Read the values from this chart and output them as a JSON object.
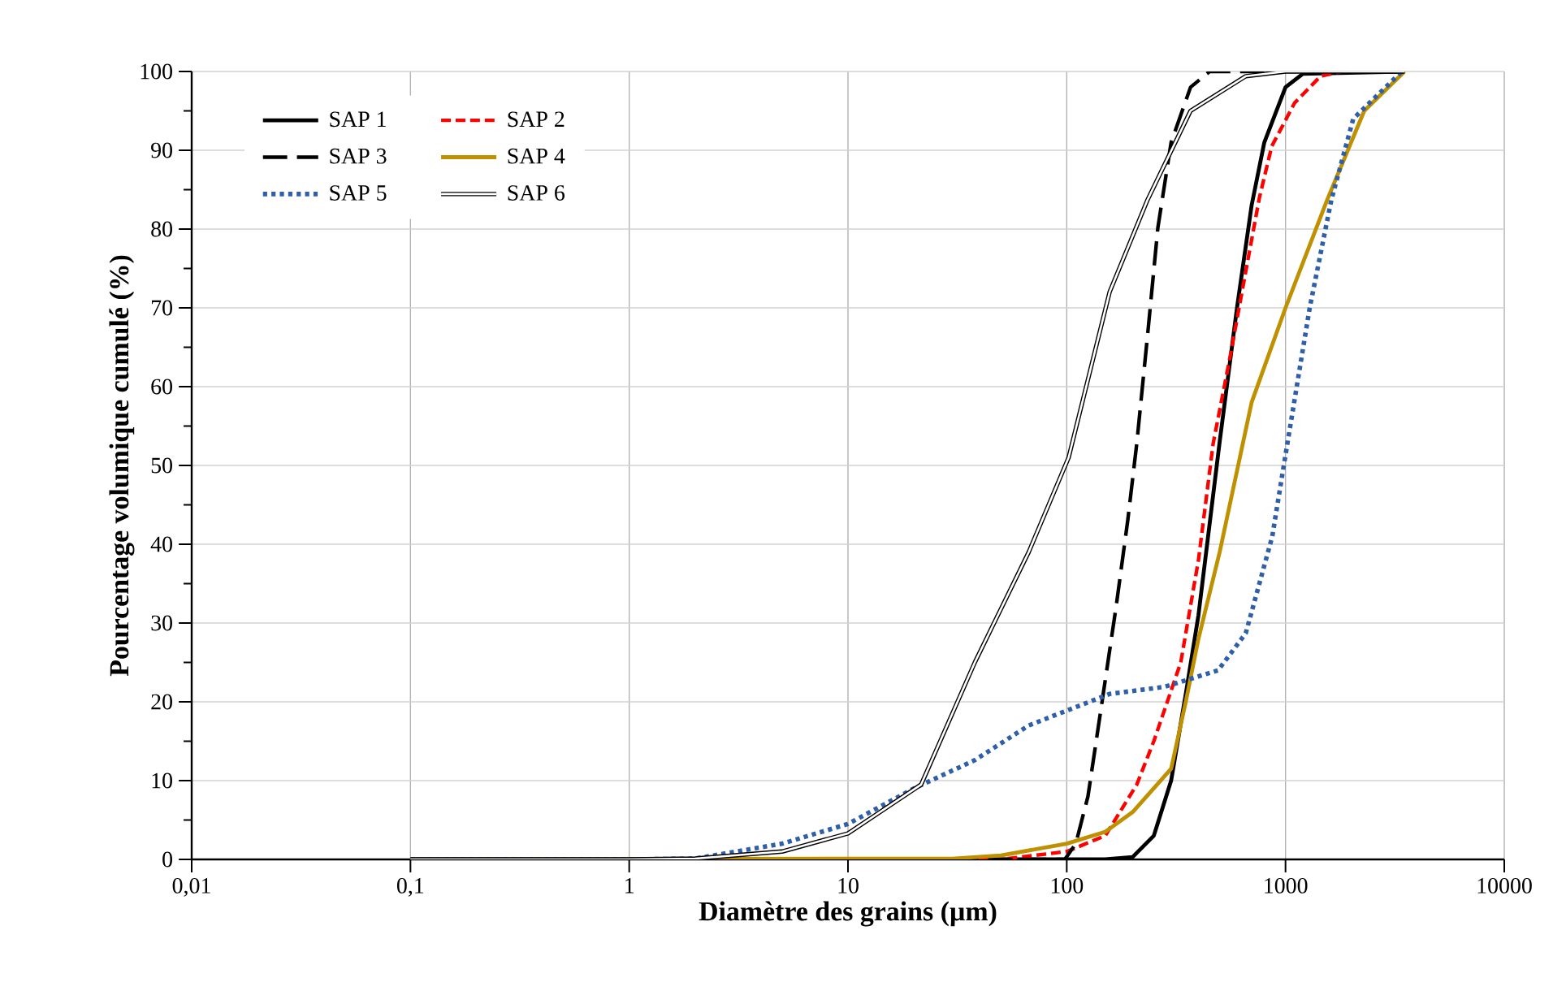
{
  "chart_data": {
    "type": "line",
    "xlabel": "Diamètre des grains (µm)",
    "ylabel": "Pourcentage volumique cumulé (%)",
    "log": "x",
    "grid": true,
    "legend": "top left",
    "marker": "none",
    "xlim": [
      0.01,
      10000
    ],
    "ylim": [
      0,
      100
    ],
    "xticks": [
      {
        "value": 0.01,
        "label": "0,01"
      },
      {
        "value": 0.1,
        "label": "0,1"
      },
      1,
      10,
      100,
      1000,
      10000
    ],
    "yticks": [
      0,
      10,
      20,
      30,
      40,
      50,
      60,
      70,
      80,
      90,
      100
    ],
    "series": [
      {
        "name": "SAP 1",
        "color": "#000000",
        "line_style": "solid",
        "x": [
          0.1,
          100,
          150,
          200,
          250,
          300,
          350,
          400,
          500,
          600,
          700,
          800,
          1000,
          1200,
          3500
        ],
        "values": [
          0,
          0,
          0,
          0.3,
          3,
          10,
          21,
          31,
          53,
          70,
          83,
          91,
          98,
          99.7,
          100
        ]
      },
      {
        "name": "SAP 2",
        "color": "#ff0000",
        "line_style": "dashed",
        "x": [
          0.1,
          50,
          100,
          150,
          209,
          250,
          332,
          400,
          467,
          560,
          658,
          760,
          865,
          1100,
          1445,
          1800,
          3500
        ],
        "values": [
          0,
          0,
          1,
          3,
          9.5,
          15,
          25,
          38,
          52.8,
          64,
          74.6,
          84,
          90.5,
          96,
          99.4,
          100,
          100
        ]
      },
      {
        "name": "SAP 3",
        "color": "#000000",
        "line_style": "long dashed",
        "x": [
          0.1,
          98,
          110,
          125,
          145,
          168,
          190,
          209,
          235,
          261,
          300,
          368,
          450,
          3500
        ],
        "values": [
          0,
          0,
          2,
          8,
          20,
          32,
          43,
          52.8,
          67,
          80.2,
          91,
          98,
          100,
          100
        ]
      },
      {
        "name": "SAP 4",
        "color": "#bf9000",
        "line_style": "solid",
        "x": [
          0.1,
          30,
          50,
          100,
          150,
          200,
          300,
          350,
          400,
          500,
          700,
          1000,
          1550,
          2290,
          3500
        ],
        "values": [
          0,
          0.1,
          0.5,
          2,
          3.5,
          6,
          11.5,
          20,
          28,
          39,
          58,
          70,
          83.7,
          95,
          100
        ]
      },
      {
        "name": "SAP 5",
        "color": "#2e5fa8",
        "line_style": "dotted",
        "x": [
          0.1,
          1,
          2,
          5,
          10,
          20,
          38,
          67,
          157,
          280,
          492,
          658,
          870,
          1020,
          1290,
          1620,
          2040,
          3400
        ],
        "values": [
          0,
          0,
          0.1,
          2,
          4.5,
          9,
          12.6,
          17,
          21,
          21.9,
          24,
          28.7,
          41,
          52.8,
          70,
          83.7,
          94,
          100
        ]
      },
      {
        "name": "SAP 6",
        "color": "#000000",
        "x": [
          0.1,
          1,
          2,
          5,
          10,
          21.6,
          38,
          67,
          102,
          157,
          234,
          368,
          658,
          1000,
          3500
        ],
        "values": [
          0,
          0,
          0.1,
          1,
          3.3,
          9.5,
          25,
          39,
          51,
          72,
          83.7,
          95,
          99.4,
          100,
          100
        ]
      }
    ]
  }
}
